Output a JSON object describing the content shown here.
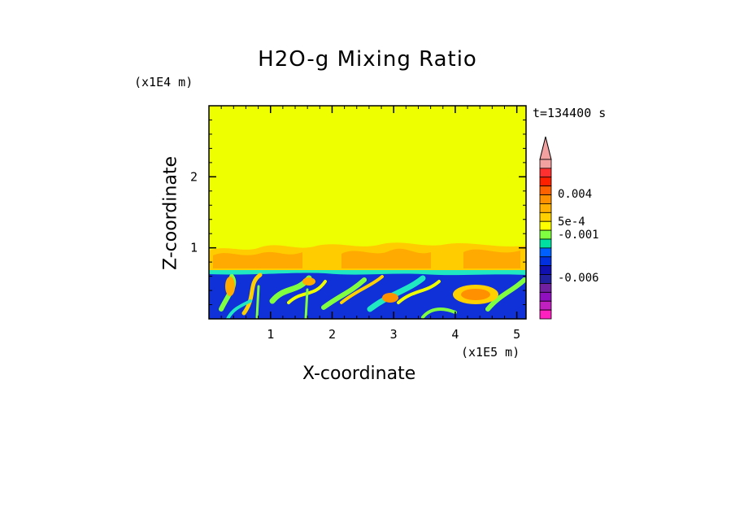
{
  "chart_data": {
    "type": "heatmap",
    "title": "H2O-g Mixing Ratio",
    "xlabel": "X-coordinate",
    "ylabel": "Z-coordinate",
    "x_unit": "(x1E5 m)",
    "y_unit": "(x1E4 m)",
    "time_label": "t=134400 s",
    "xlim": [
      0,
      5.15
    ],
    "ylim": [
      0,
      3.0
    ],
    "x_ticks": [
      1,
      2,
      3,
      4,
      5
    ],
    "y_ticks": [
      1,
      2
    ],
    "regions": [
      {
        "name": "upper layer",
        "z_range": [
          1.02,
          3.0
        ],
        "level": "uniform"
      },
      {
        "name": "transition layer",
        "z_range": [
          0.7,
          1.02
        ],
        "level": "orange/yellow mix"
      },
      {
        "name": "lower layer",
        "z_range": [
          0.0,
          0.7
        ],
        "level": "blue/green/yellow turbulent mix"
      }
    ],
    "colorbar": {
      "labels": [
        "0.004",
        "5e-4",
        "-0.001",
        "-0.006"
      ],
      "colors": [
        "#f2a0a0",
        "#ff3030",
        "#ff2000",
        "#ff6000",
        "#ff9000",
        "#ffb000",
        "#ffd000",
        "#ffff00",
        "#80ff40",
        "#00e0a0",
        "#0060ff",
        "#0030e0",
        "#1010b0",
        "#2020a0",
        "#7020a0",
        "#9010c0",
        "#c020c0",
        "#ff20c0"
      ]
    }
  }
}
